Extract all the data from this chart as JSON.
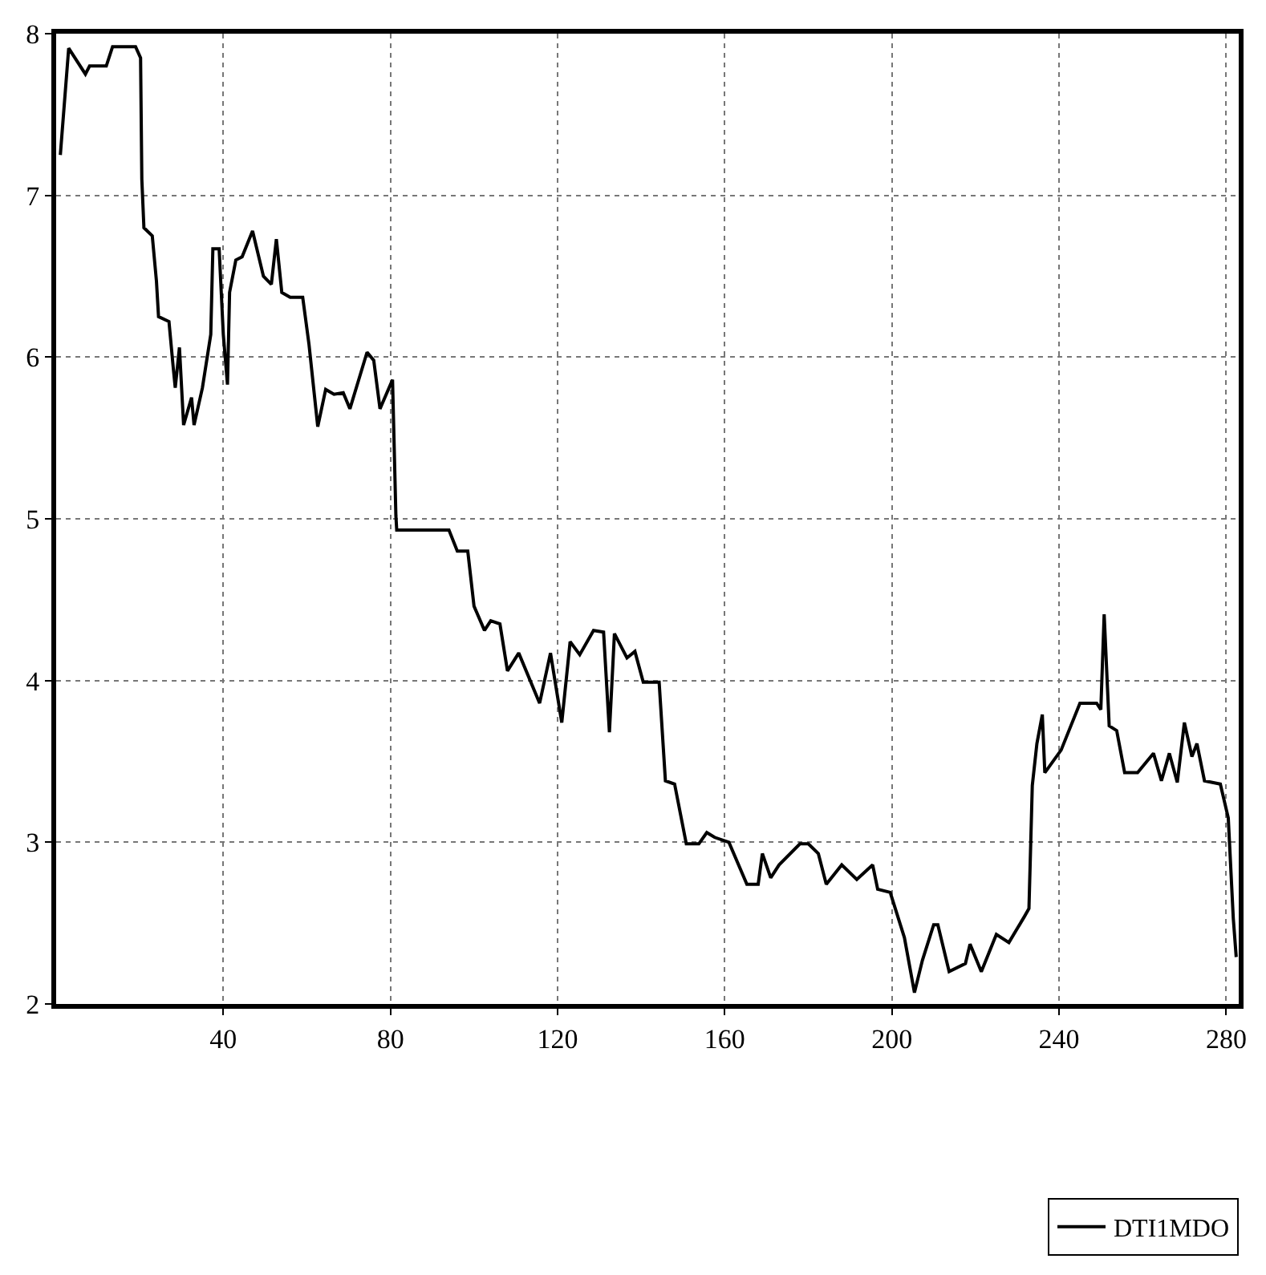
{
  "chart_data": {
    "type": "line",
    "xlim": [
      0,
      283
    ],
    "ylim": [
      2,
      8
    ],
    "xticks": [
      40,
      80,
      120,
      160,
      200,
      240,
      280
    ],
    "yticks": [
      2,
      3,
      4,
      5,
      6,
      7,
      8
    ],
    "grid": true,
    "legend": "bottom right",
    "line_style": "solid",
    "marker": "none",
    "series": [
      {
        "name": "DTI1MDO",
        "color": "#000000",
        "x": [
          1,
          3,
          7,
          8,
          12,
          13.5,
          19,
          20.2,
          20.5,
          21,
          23,
          24,
          24.5,
          27,
          28,
          28.5,
          29.5,
          30.5,
          32.4,
          33,
          35,
          37,
          37.5,
          39,
          40,
          41,
          41.5,
          43,
          44.5,
          47,
          49.6,
          51.5,
          52.7,
          54,
          56,
          59,
          60.5,
          62.6,
          64.5,
          66.5,
          68.7,
          70.3,
          74.4,
          76,
          77.5,
          80.5,
          81.3,
          81.5,
          94,
          96,
          98.5,
          100,
          102.5,
          104,
          106.2,
          108,
          110.7,
          115.7,
          118.3,
          121,
          123,
          125.3,
          128.6,
          131,
          132.4,
          133.6,
          136.6,
          138.5,
          140.5,
          144.3,
          145.8,
          148,
          150.8,
          153.8,
          155.7,
          157.6,
          161,
          165.3,
          168,
          169,
          171,
          173,
          178,
          180,
          182.4,
          184.3,
          188,
          191.6,
          195.4,
          196.6,
          199.6,
          203,
          205.4,
          207.3,
          210,
          211,
          213.7,
          217.6,
          218.7,
          221.4,
          225,
          228,
          231.7,
          232.8,
          233.6,
          234.7,
          236,
          236.6,
          240.5,
          245,
          249,
          250,
          250.8,
          252,
          253.8,
          255.7,
          258.8,
          262.6,
          264.5,
          266.4,
          268.3,
          270,
          271.8,
          273,
          274.8,
          278.6,
          280.5,
          281.7,
          282.4
        ],
        "values": [
          7.25,
          7.91,
          7.75,
          7.8,
          7.8,
          7.92,
          7.92,
          7.85,
          7.1,
          6.8,
          6.75,
          6.47,
          6.25,
          6.22,
          5.94,
          5.81,
          6.06,
          5.58,
          5.75,
          5.58,
          5.81,
          6.14,
          6.67,
          6.67,
          6.14,
          5.83,
          6.4,
          6.6,
          6.62,
          6.78,
          6.5,
          6.45,
          6.73,
          6.4,
          6.37,
          6.37,
          6.08,
          5.57,
          5.8,
          5.77,
          5.78,
          5.68,
          6.03,
          5.98,
          5.68,
          5.86,
          5.02,
          4.93,
          4.93,
          4.8,
          4.8,
          4.46,
          4.31,
          4.37,
          4.35,
          4.06,
          4.17,
          3.86,
          4.17,
          3.74,
          4.24,
          4.16,
          4.31,
          4.3,
          3.68,
          4.29,
          4.14,
          4.18,
          3.99,
          3.99,
          3.38,
          3.36,
          2.99,
          2.99,
          3.06,
          3.03,
          3.0,
          2.74,
          2.74,
          2.93,
          2.78,
          2.86,
          2.99,
          2.99,
          2.93,
          2.74,
          2.86,
          2.77,
          2.86,
          2.71,
          2.69,
          2.41,
          2.07,
          2.27,
          2.49,
          2.49,
          2.2,
          2.25,
          2.37,
          2.2,
          2.43,
          2.38,
          2.54,
          2.59,
          3.35,
          3.61,
          3.79,
          3.43,
          3.57,
          3.86,
          3.86,
          3.82,
          4.41,
          3.72,
          3.69,
          3.43,
          3.43,
          3.55,
          3.38,
          3.55,
          3.37,
          3.74,
          3.53,
          3.61,
          3.38,
          3.36,
          3.15,
          2.53,
          2.29
        ]
      }
    ]
  }
}
